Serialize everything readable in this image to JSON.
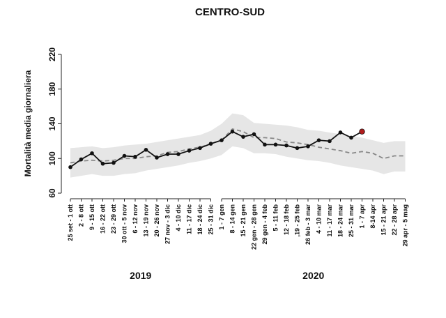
{
  "chart_data": {
    "type": "line",
    "title": "CENTRO-SUD",
    "y_label": "Mortalità media giornaliera",
    "categories": [
      "25 set - 1 ott",
      "2 - 8 ott",
      "9 - 15 ott",
      "16 - 22 ott",
      "23 - 29 ott",
      "30 ott - 5 nov",
      "6 - 12 nov",
      "13 - 19 nov",
      "20 - 26 nov",
      "27 nov - 3 dic",
      "4 - 10 dic",
      "11 - 17 dic",
      "18 - 24 dic",
      "25 - 31 dic",
      "1 - 7 gen",
      "8 - 14 gen",
      "15 - 21 gen",
      "22 gen - 28 gen",
      "29 gen - 4 feb",
      "5 - 11 feb",
      "12 - 18 feb",
      ",19 - 25 feb",
      "26 feb - 3 mar",
      "4 - 10 mar",
      "11 - 17 mar",
      "18 - 24 mar",
      "25 - 31 mar",
      "1 - 7 apr",
      "8-14 apr",
      "15 - 21 apr",
      "22 - 28 apr",
      "29 apr - 5 mag"
    ],
    "groups": [
      {
        "label": "2019",
        "count": 14
      },
      {
        "label": "2020",
        "count": 18
      }
    ],
    "observed": {
      "color": "#111111",
      "highlight_color": "#b01c1c",
      "values": [
        90,
        99,
        106,
        94,
        95,
        103,
        102,
        110,
        101,
        105,
        105,
        109,
        112,
        117,
        121,
        131,
        125,
        128,
        116,
        116,
        115,
        112,
        114,
        121,
        120,
        130,
        124,
        131,
        null,
        null,
        null,
        null
      ]
    },
    "expected": {
      "color": "#888888",
      "values": [
        95,
        97,
        98,
        97,
        98,
        100,
        100,
        102,
        103,
        107,
        108,
        111,
        113,
        117,
        121,
        134,
        131,
        124,
        124,
        123,
        119,
        118,
        116,
        113,
        111,
        109,
        106,
        108,
        106,
        100,
        103,
        103
      ]
    },
    "band": {
      "color": "#e6e6e6",
      "upper": [
        112,
        113,
        114,
        112,
        113,
        115,
        116,
        117,
        119,
        121,
        123,
        125,
        127,
        132,
        140,
        152,
        150,
        141,
        140,
        139,
        138,
        136,
        133,
        132,
        130,
        128,
        126,
        124,
        121,
        118,
        120,
        120
      ],
      "lower": [
        78,
        80,
        82,
        80,
        80,
        82,
        83,
        86,
        88,
        90,
        92,
        95,
        97,
        100,
        104,
        114,
        112,
        106,
        106,
        105,
        102,
        100,
        98,
        97,
        95,
        92,
        90,
        88,
        86,
        82,
        85,
        85
      ]
    },
    "ylim": [
      60,
      220
    ],
    "yticks": [
      60,
      100,
      140,
      180,
      220
    ]
  }
}
